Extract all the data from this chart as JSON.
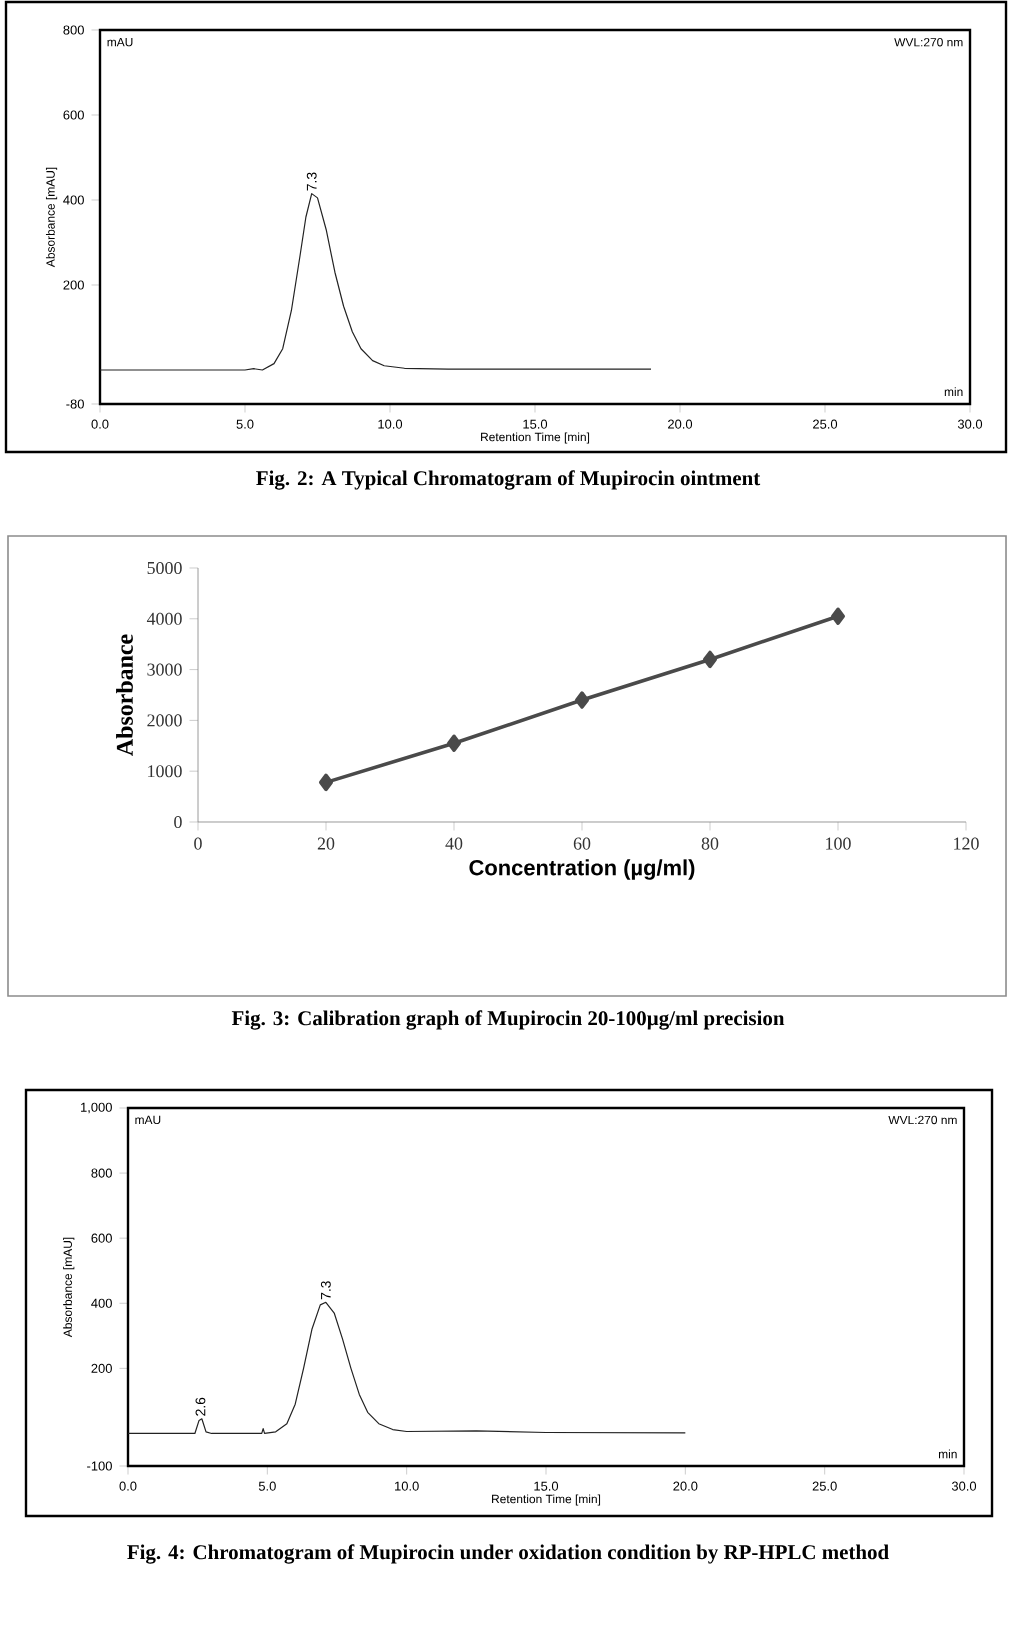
{
  "chart_data": [
    {
      "type": "line",
      "title": "Fig. 2: A Typical Chromatogram of Mupirocin ointment",
      "xlabel": "Retention Time [min]",
      "ylabel": "Absorbance [mAU]",
      "annotations": [
        "mAU",
        "WVL:270 nm",
        "min",
        {
          "text": "7.3",
          "x": 7.3,
          "y": 415
        }
      ],
      "x": [
        0,
        5,
        5.3,
        5.6,
        6.0,
        6.3,
        6.6,
        6.9,
        7.1,
        7.3,
        7.5,
        7.8,
        8.1,
        8.4,
        8.7,
        9.0,
        9.4,
        9.8,
        10.5,
        12,
        15,
        19
      ],
      "series": [
        {
          "color": "#222222",
          "values": [
            0,
            0,
            3,
            0,
            15,
            50,
            140,
            270,
            360,
            415,
            405,
            330,
            230,
            150,
            90,
            50,
            22,
            10,
            4,
            2,
            2,
            2
          ]
        }
      ],
      "xlim": [
        0,
        30
      ],
      "ylim": [
        -80,
        800
      ],
      "xticks": [
        {
          "value": 0,
          "label": "0.0"
        },
        {
          "value": 5,
          "label": "5.0"
        },
        {
          "value": 10,
          "label": "10.0"
        },
        {
          "value": 15,
          "label": "15.0"
        },
        {
          "value": 20,
          "label": "20.0"
        },
        {
          "value": 25,
          "label": "25.0"
        },
        {
          "value": 30,
          "label": "30.0"
        }
      ],
      "yticks": [
        -80,
        200,
        400,
        600,
        800
      ],
      "marker": "none",
      "grid": false
    },
    {
      "type": "line",
      "title": "Fig. 3: Calibration graph of Mupirocin 20-100µg/ml precision",
      "xlabel": "Concentration  (µg/ml)",
      "ylabel": "Absorbance",
      "x": [
        20,
        40,
        60,
        80,
        100
      ],
      "series": [
        {
          "color": "#4a4a4a",
          "values": [
            780,
            1550,
            2400,
            3200,
            4050
          ]
        }
      ],
      "xlim": [
        0,
        120
      ],
      "ylim": [
        0,
        5000
      ],
      "xticks": [
        0,
        20,
        40,
        60,
        80,
        100,
        120
      ],
      "yticks": [
        0,
        1000,
        2000,
        3000,
        4000,
        5000
      ],
      "marker": "diamond",
      "grid": false
    },
    {
      "type": "line",
      "title": "Fig. 4: Chromatogram of Mupirocin under oxidation condition by RP-HPLC method",
      "xlabel": "Retention Time [min]",
      "ylabel": "Absorbance [mAU]",
      "annotations": [
        "mAU",
        "WVL:270 nm",
        "min",
        {
          "text": "7.3",
          "x": 7.1,
          "y": 403
        },
        {
          "text": "2.6",
          "x": 2.6,
          "y": 45
        }
      ],
      "x": [
        0,
        2.4,
        2.55,
        2.65,
        2.8,
        3.0,
        4.8,
        4.85,
        4.9,
        5.3,
        5.7,
        6.0,
        6.3,
        6.6,
        6.9,
        7.1,
        7.4,
        7.7,
        8.0,
        8.3,
        8.6,
        9.0,
        9.5,
        10,
        12.5,
        15,
        20
      ],
      "series": [
        {
          "color": "#222222",
          "values": [
            0,
            0,
            40,
            45,
            5,
            0,
            0,
            15,
            0,
            5,
            30,
            90,
            200,
            320,
            395,
            403,
            370,
            290,
            200,
            120,
            65,
            30,
            12,
            6,
            8,
            3,
            2
          ]
        }
      ],
      "xlim": [
        0,
        30
      ],
      "ylim": [
        -100,
        1000
      ],
      "xticks": [
        {
          "value": 0,
          "label": "0.0"
        },
        {
          "value": 5,
          "label": "5.0"
        },
        {
          "value": 10,
          "label": "10.0"
        },
        {
          "value": 15,
          "label": "15.0"
        },
        {
          "value": 20,
          "label": "20.0"
        },
        {
          "value": 25,
          "label": "25.0"
        },
        {
          "value": 30,
          "label": "30.0"
        }
      ],
      "yticks": [
        -100,
        200,
        400,
        600,
        800,
        {
          "value": 1000,
          "label": "1,000"
        }
      ],
      "marker": "none",
      "grid": false
    }
  ]
}
